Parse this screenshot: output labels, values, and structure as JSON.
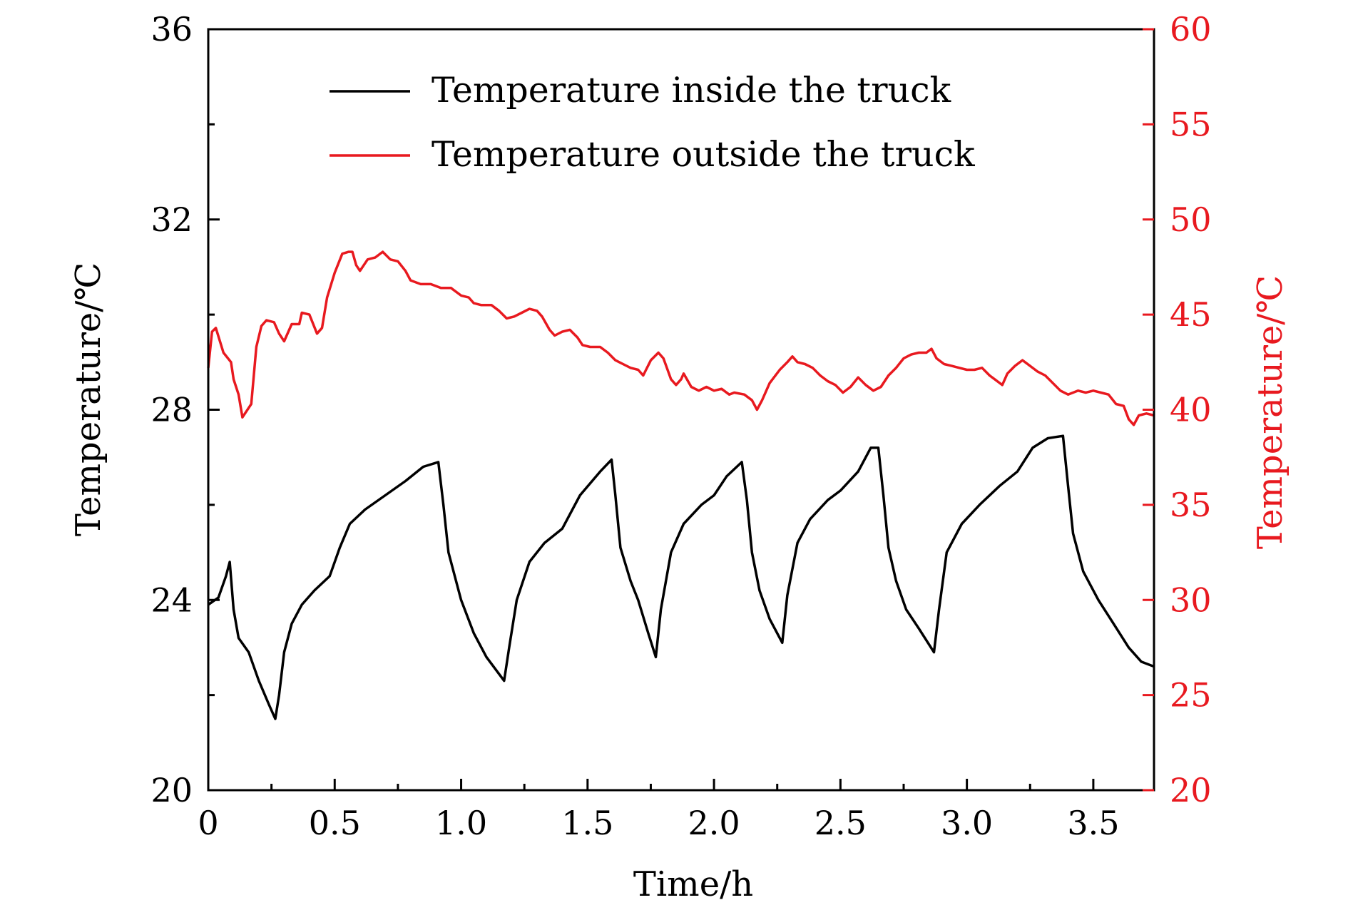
{
  "chart_data": {
    "type": "line",
    "xlabel": "Time/h",
    "ylabel_left": "Temperature/℃",
    "ylabel_right": "Temperature/℃",
    "xlim": [
      0,
      3.74
    ],
    "ylim_left": [
      20,
      36
    ],
    "ylim_right": [
      20,
      60
    ],
    "x_ticks": [
      0,
      0.5,
      1.0,
      1.5,
      2.0,
      2.5,
      3.0,
      3.5
    ],
    "x_tick_labels": [
      "0",
      "0.5",
      "1.0",
      "1.5",
      "2.0",
      "2.5",
      "3.0",
      "3.5"
    ],
    "y_left_ticks": [
      20,
      24,
      28,
      32,
      36
    ],
    "y_left_tick_labels": [
      "20",
      "24",
      "28",
      "32",
      "36"
    ],
    "y_right_ticks": [
      20,
      25,
      30,
      35,
      40,
      45,
      50,
      55,
      60
    ],
    "y_right_tick_labels": [
      "20",
      "25",
      "30",
      "35",
      "40",
      "45",
      "50",
      "55",
      "60"
    ],
    "grid": false,
    "legend_position": "top-center",
    "colors": {
      "inside": "#000000",
      "outside": "#e8191f",
      "right_axis": "#e8191f"
    },
    "series": [
      {
        "name": "Temperature inside the truck",
        "axis": "left",
        "color": "#000000",
        "points": [
          [
            0,
            23.9
          ],
          [
            0.04,
            24.05
          ],
          [
            0.07,
            24.5
          ],
          [
            0.085,
            24.8
          ],
          [
            0.1,
            23.8
          ],
          [
            0.12,
            23.2
          ],
          [
            0.16,
            22.9
          ],
          [
            0.2,
            22.3
          ],
          [
            0.24,
            21.8
          ],
          [
            0.265,
            21.5
          ],
          [
            0.28,
            22.0
          ],
          [
            0.3,
            22.9
          ],
          [
            0.33,
            23.5
          ],
          [
            0.37,
            23.9
          ],
          [
            0.42,
            24.2
          ],
          [
            0.48,
            24.5
          ],
          [
            0.52,
            25.1
          ],
          [
            0.56,
            25.6
          ],
          [
            0.62,
            25.9
          ],
          [
            0.7,
            26.2
          ],
          [
            0.78,
            26.5
          ],
          [
            0.85,
            26.8
          ],
          [
            0.91,
            26.9
          ],
          [
            0.93,
            26.0
          ],
          [
            0.95,
            25.0
          ],
          [
            1.0,
            24.0
          ],
          [
            1.05,
            23.3
          ],
          [
            1.1,
            22.8
          ],
          [
            1.17,
            22.3
          ],
          [
            1.19,
            23.0
          ],
          [
            1.22,
            24.0
          ],
          [
            1.27,
            24.8
          ],
          [
            1.33,
            25.2
          ],
          [
            1.4,
            25.5
          ],
          [
            1.47,
            26.2
          ],
          [
            1.55,
            26.7
          ],
          [
            1.595,
            26.95
          ],
          [
            1.61,
            26.2
          ],
          [
            1.63,
            25.1
          ],
          [
            1.67,
            24.4
          ],
          [
            1.7,
            24.0
          ],
          [
            1.74,
            23.3
          ],
          [
            1.77,
            22.8
          ],
          [
            1.79,
            23.8
          ],
          [
            1.83,
            25.0
          ],
          [
            1.88,
            25.6
          ],
          [
            1.95,
            26.0
          ],
          [
            2.0,
            26.2
          ],
          [
            2.05,
            26.6
          ],
          [
            2.11,
            26.9
          ],
          [
            2.13,
            26.1
          ],
          [
            2.15,
            25.0
          ],
          [
            2.18,
            24.2
          ],
          [
            2.22,
            23.6
          ],
          [
            2.27,
            23.1
          ],
          [
            2.29,
            24.1
          ],
          [
            2.33,
            25.2
          ],
          [
            2.38,
            25.7
          ],
          [
            2.45,
            26.1
          ],
          [
            2.5,
            26.3
          ],
          [
            2.57,
            26.7
          ],
          [
            2.62,
            27.2
          ],
          [
            2.65,
            27.2
          ],
          [
            2.67,
            26.2
          ],
          [
            2.69,
            25.1
          ],
          [
            2.72,
            24.4
          ],
          [
            2.76,
            23.8
          ],
          [
            2.81,
            23.4
          ],
          [
            2.87,
            22.9
          ],
          [
            2.89,
            23.8
          ],
          [
            2.92,
            25.0
          ],
          [
            2.98,
            25.6
          ],
          [
            3.05,
            26.0
          ],
          [
            3.13,
            26.4
          ],
          [
            3.2,
            26.7
          ],
          [
            3.26,
            27.2
          ],
          [
            3.32,
            27.4
          ],
          [
            3.38,
            27.45
          ],
          [
            3.4,
            26.4
          ],
          [
            3.42,
            25.4
          ],
          [
            3.46,
            24.6
          ],
          [
            3.52,
            24.0
          ],
          [
            3.58,
            23.5
          ],
          [
            3.64,
            23.0
          ],
          [
            3.69,
            22.7
          ],
          [
            3.74,
            22.6
          ]
        ]
      },
      {
        "name": "Temperature outside the truck",
        "axis": "right",
        "color": "#e8191f",
        "points": [
          [
            0,
            42.2
          ],
          [
            0.015,
            44.1
          ],
          [
            0.03,
            44.3
          ],
          [
            0.06,
            43.0
          ],
          [
            0.09,
            42.5
          ],
          [
            0.1,
            41.6
          ],
          [
            0.12,
            40.8
          ],
          [
            0.135,
            39.6
          ],
          [
            0.15,
            39.9
          ],
          [
            0.17,
            40.3
          ],
          [
            0.19,
            43.3
          ],
          [
            0.21,
            44.4
          ],
          [
            0.23,
            44.7
          ],
          [
            0.26,
            44.6
          ],
          [
            0.28,
            44.0
          ],
          [
            0.3,
            43.6
          ],
          [
            0.33,
            44.5
          ],
          [
            0.36,
            44.5
          ],
          [
            0.37,
            45.1
          ],
          [
            0.4,
            45.0
          ],
          [
            0.43,
            44.0
          ],
          [
            0.45,
            44.3
          ],
          [
            0.47,
            45.9
          ],
          [
            0.5,
            47.2
          ],
          [
            0.53,
            48.2
          ],
          [
            0.555,
            48.3
          ],
          [
            0.57,
            48.3
          ],
          [
            0.585,
            47.6
          ],
          [
            0.6,
            47.3
          ],
          [
            0.63,
            47.9
          ],
          [
            0.66,
            48.0
          ],
          [
            0.69,
            48.3
          ],
          [
            0.72,
            47.9
          ],
          [
            0.75,
            47.8
          ],
          [
            0.78,
            47.3
          ],
          [
            0.8,
            46.8
          ],
          [
            0.84,
            46.6
          ],
          [
            0.88,
            46.6
          ],
          [
            0.92,
            46.4
          ],
          [
            0.96,
            46.4
          ],
          [
            1.0,
            46.0
          ],
          [
            1.03,
            45.9
          ],
          [
            1.05,
            45.6
          ],
          [
            1.08,
            45.5
          ],
          [
            1.12,
            45.5
          ],
          [
            1.15,
            45.2
          ],
          [
            1.18,
            44.8
          ],
          [
            1.21,
            44.9
          ],
          [
            1.24,
            45.1
          ],
          [
            1.27,
            45.3
          ],
          [
            1.3,
            45.2
          ],
          [
            1.32,
            44.9
          ],
          [
            1.35,
            44.2
          ],
          [
            1.37,
            43.9
          ],
          [
            1.4,
            44.1
          ],
          [
            1.43,
            44.2
          ],
          [
            1.46,
            43.8
          ],
          [
            1.48,
            43.4
          ],
          [
            1.51,
            43.3
          ],
          [
            1.55,
            43.3
          ],
          [
            1.58,
            43.0
          ],
          [
            1.61,
            42.6
          ],
          [
            1.64,
            42.4
          ],
          [
            1.67,
            42.2
          ],
          [
            1.7,
            42.1
          ],
          [
            1.72,
            41.8
          ],
          [
            1.75,
            42.6
          ],
          [
            1.78,
            43.0
          ],
          [
            1.8,
            42.7
          ],
          [
            1.83,
            41.6
          ],
          [
            1.85,
            41.3
          ],
          [
            1.87,
            41.6
          ],
          [
            1.88,
            41.9
          ],
          [
            1.91,
            41.2
          ],
          [
            1.94,
            41.0
          ],
          [
            1.97,
            41.2
          ],
          [
            2.0,
            41.0
          ],
          [
            2.03,
            41.1
          ],
          [
            2.06,
            40.8
          ],
          [
            2.08,
            40.9
          ],
          [
            2.12,
            40.8
          ],
          [
            2.15,
            40.5
          ],
          [
            2.17,
            40.0
          ],
          [
            2.19,
            40.5
          ],
          [
            2.22,
            41.4
          ],
          [
            2.26,
            42.1
          ],
          [
            2.29,
            42.5
          ],
          [
            2.31,
            42.8
          ],
          [
            2.33,
            42.5
          ],
          [
            2.36,
            42.4
          ],
          [
            2.39,
            42.2
          ],
          [
            2.42,
            41.8
          ],
          [
            2.45,
            41.5
          ],
          [
            2.48,
            41.3
          ],
          [
            2.51,
            40.9
          ],
          [
            2.54,
            41.2
          ],
          [
            2.57,
            41.7
          ],
          [
            2.6,
            41.3
          ],
          [
            2.63,
            41.0
          ],
          [
            2.66,
            41.2
          ],
          [
            2.69,
            41.8
          ],
          [
            2.72,
            42.2
          ],
          [
            2.75,
            42.7
          ],
          [
            2.78,
            42.9
          ],
          [
            2.81,
            43.0
          ],
          [
            2.84,
            43.0
          ],
          [
            2.86,
            43.2
          ],
          [
            2.88,
            42.7
          ],
          [
            2.91,
            42.4
          ],
          [
            2.94,
            42.3
          ],
          [
            2.97,
            42.2
          ],
          [
            3.0,
            42.1
          ],
          [
            3.03,
            42.1
          ],
          [
            3.06,
            42.2
          ],
          [
            3.09,
            41.8
          ],
          [
            3.12,
            41.5
          ],
          [
            3.14,
            41.3
          ],
          [
            3.16,
            41.9
          ],
          [
            3.19,
            42.3
          ],
          [
            3.22,
            42.6
          ],
          [
            3.25,
            42.3
          ],
          [
            3.28,
            42.0
          ],
          [
            3.31,
            41.8
          ],
          [
            3.34,
            41.4
          ],
          [
            3.37,
            41.0
          ],
          [
            3.4,
            40.8
          ],
          [
            3.44,
            41.0
          ],
          [
            3.47,
            40.9
          ],
          [
            3.5,
            41.0
          ],
          [
            3.53,
            40.9
          ],
          [
            3.56,
            40.8
          ],
          [
            3.59,
            40.3
          ],
          [
            3.62,
            40.2
          ],
          [
            3.64,
            39.5
          ],
          [
            3.66,
            39.2
          ],
          [
            3.68,
            39.7
          ],
          [
            3.71,
            39.8
          ],
          [
            3.74,
            39.7
          ]
        ]
      }
    ]
  }
}
